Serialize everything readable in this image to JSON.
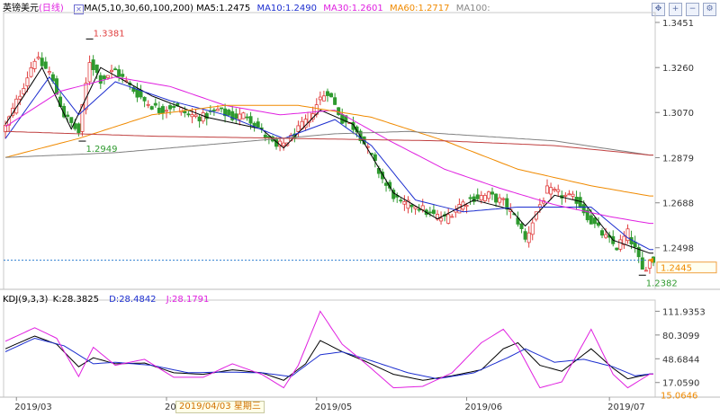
{
  "header": {
    "symbol": "英镑美元",
    "period": "(日线)",
    "ma_spec": "MA(5,10,30,60,100,200)",
    "ma_values": [
      {
        "label": "MA5:1.2475",
        "color": "#000000"
      },
      {
        "label": "MA10:1.2490",
        "color": "#1c2ecf"
      },
      {
        "label": "MA30:1.2601",
        "color": "#e020e0"
      },
      {
        "label": "MA60:1.2717",
        "color": "#f08a00"
      },
      {
        "label": "MA100:",
        "color": "#888888"
      }
    ],
    "icons": [
      "move-icon",
      "plus-icon",
      "minus-icon",
      "settings-icon"
    ]
  },
  "colors": {
    "up": "#e04040",
    "down": "#2f9a2f",
    "ma5": "#000000",
    "ma10": "#1c2ecf",
    "ma30": "#e020e0",
    "ma60": "#f08a00",
    "ma100": "#808080",
    "ma200": "#c04040",
    "k": "#000000",
    "d": "#1c2ecf",
    "j": "#e020e0",
    "price_line": "#2f7fd0"
  },
  "chart_data": [
    {
      "type": "candlestick",
      "title": "英镑美元(日线)",
      "y_ticks": [
        1.3451,
        1.326,
        1.307,
        1.2879,
        1.2688,
        1.2498
      ],
      "ylim": [
        1.2345,
        1.3485
      ],
      "x_labels": [
        {
          "label": "2019/03",
          "index": 3
        },
        {
          "label": "20",
          "index": 44
        },
        {
          "label": "2019/05",
          "index": 85
        },
        {
          "label": "2019/06",
          "index": 126
        },
        {
          "label": "2019/07",
          "index": 165
        }
      ],
      "annotations": [
        {
          "text": "1.3381",
          "index": 23,
          "value": 1.3381,
          "color": "#e04040"
        },
        {
          "text": "1.2949",
          "index": 21,
          "value": 1.2949,
          "color": "#2f9a2f"
        },
        {
          "text": "1.2382",
          "index": 174,
          "value": 1.2382,
          "color": "#2f9a2f"
        }
      ],
      "current_price": {
        "value": 1.2445,
        "label": "1.2445"
      },
      "crosshair_label": "2019/04/03 星期三",
      "ohlc_anchors": [
        [
          0,
          1.301
        ],
        [
          4,
          1.315
        ],
        [
          8,
          1.33
        ],
        [
          12,
          1.324
        ],
        [
          16,
          1.306
        ],
        [
          20,
          1.2985
        ],
        [
          23,
          1.329
        ],
        [
          26,
          1.321
        ],
        [
          30,
          1.325
        ],
        [
          34,
          1.318
        ],
        [
          38,
          1.312
        ],
        [
          42,
          1.308
        ],
        [
          46,
          1.31
        ],
        [
          50,
          1.306
        ],
        [
          54,
          1.305
        ],
        [
          58,
          1.308
        ],
        [
          62,
          1.305
        ],
        [
          66,
          1.306
        ],
        [
          70,
          1.299
        ],
        [
          74,
          1.292
        ],
        [
          78,
          1.296
        ],
        [
          82,
          1.303
        ],
        [
          86,
          1.313
        ],
        [
          88,
          1.316
        ],
        [
          92,
          1.304
        ],
        [
          96,
          1.3
        ],
        [
          100,
          1.288
        ],
        [
          104,
          1.276
        ],
        [
          108,
          1.268
        ],
        [
          112,
          1.268
        ],
        [
          116,
          1.264
        ],
        [
          120,
          1.262
        ],
        [
          124,
          1.268
        ],
        [
          128,
          1.271
        ],
        [
          132,
          1.272
        ],
        [
          136,
          1.269
        ],
        [
          140,
          1.261
        ],
        [
          142,
          1.253
        ],
        [
          145,
          1.265
        ],
        [
          148,
          1.274
        ],
        [
          152,
          1.272
        ],
        [
          156,
          1.27
        ],
        [
          160,
          1.261
        ],
        [
          164,
          1.254
        ],
        [
          167,
          1.25
        ],
        [
          170,
          1.256
        ],
        [
          172,
          1.249
        ],
        [
          174,
          1.24
        ],
        [
          176,
          1.2445
        ]
      ],
      "ma_anchors": {
        "ma5": [
          [
            0,
            1.302
          ],
          [
            10,
            1.326
          ],
          [
            18,
            1.3
          ],
          [
            26,
            1.326
          ],
          [
            40,
            1.314
          ],
          [
            55,
            1.305
          ],
          [
            70,
            1.3
          ],
          [
            76,
            1.292
          ],
          [
            86,
            1.308
          ],
          [
            95,
            1.302
          ],
          [
            106,
            1.273
          ],
          [
            118,
            1.262
          ],
          [
            128,
            1.27
          ],
          [
            138,
            1.266
          ],
          [
            142,
            1.259
          ],
          [
            150,
            1.272
          ],
          [
            158,
            1.269
          ],
          [
            166,
            1.253
          ],
          [
            176,
            1.2475
          ]
        ],
        "ma10": [
          [
            0,
            1.296
          ],
          [
            12,
            1.322
          ],
          [
            20,
            1.306
          ],
          [
            30,
            1.32
          ],
          [
            45,
            1.312
          ],
          [
            60,
            1.306
          ],
          [
            76,
            1.296
          ],
          [
            90,
            1.304
          ],
          [
            100,
            1.293
          ],
          [
            112,
            1.27
          ],
          [
            125,
            1.265
          ],
          [
            140,
            1.267
          ],
          [
            148,
            1.267
          ],
          [
            160,
            1.267
          ],
          [
            170,
            1.254
          ],
          [
            176,
            1.249
          ]
        ],
        "ma30": [
          [
            0,
            1.301
          ],
          [
            15,
            1.316
          ],
          [
            30,
            1.322
          ],
          [
            45,
            1.318
          ],
          [
            60,
            1.31
          ],
          [
            75,
            1.306
          ],
          [
            90,
            1.308
          ],
          [
            105,
            1.295
          ],
          [
            120,
            1.283
          ],
          [
            135,
            1.275
          ],
          [
            150,
            1.268
          ],
          [
            165,
            1.263
          ],
          [
            176,
            1.2601
          ]
        ],
        "ma60": [
          [
            0,
            1.288
          ],
          [
            20,
            1.296
          ],
          [
            40,
            1.306
          ],
          [
            60,
            1.31
          ],
          [
            80,
            1.31
          ],
          [
            100,
            1.305
          ],
          [
            120,
            1.295
          ],
          [
            140,
            1.283
          ],
          [
            160,
            1.276
          ],
          [
            176,
            1.2717
          ]
        ],
        "ma100": [
          [
            0,
            1.288
          ],
          [
            30,
            1.29
          ],
          [
            60,
            1.294
          ],
          [
            90,
            1.298
          ],
          [
            110,
            1.299
          ],
          [
            130,
            1.297
          ],
          [
            150,
            1.295
          ],
          [
            176,
            1.289
          ]
        ],
        "ma200": [
          [
            0,
            1.299
          ],
          [
            40,
            1.297
          ],
          [
            80,
            1.296
          ],
          [
            120,
            1.295
          ],
          [
            150,
            1.293
          ],
          [
            176,
            1.289
          ]
        ]
      }
    },
    {
      "type": "line",
      "title": "KDJ(9,3,3)",
      "series": [
        {
          "name": "K:28.3825"
        },
        {
          "name": "D:28.4842"
        },
        {
          "name": "J:28.1791"
        }
      ],
      "y_ticks": [
        111.9353,
        80.3099,
        48.6844,
        17.059
      ],
      "extra_label": "15.0646",
      "ylim": [
        0,
        122
      ],
      "k_anchors": [
        [
          0,
          62
        ],
        [
          8,
          79
        ],
        [
          14,
          68
        ],
        [
          20,
          38
        ],
        [
          24,
          50
        ],
        [
          30,
          42
        ],
        [
          38,
          43
        ],
        [
          46,
          30
        ],
        [
          54,
          28
        ],
        [
          62,
          34
        ],
        [
          70,
          30
        ],
        [
          76,
          20
        ],
        [
          82,
          42
        ],
        [
          86,
          73
        ],
        [
          92,
          58
        ],
        [
          98,
          46
        ],
        [
          106,
          28
        ],
        [
          114,
          20
        ],
        [
          122,
          26
        ],
        [
          130,
          34
        ],
        [
          136,
          62
        ],
        [
          140,
          70
        ],
        [
          146,
          40
        ],
        [
          152,
          32
        ],
        [
          160,
          62
        ],
        [
          166,
          36
        ],
        [
          170,
          22
        ],
        [
          176,
          28.38
        ]
      ],
      "d_anchors": [
        [
          0,
          58
        ],
        [
          8,
          76
        ],
        [
          16,
          66
        ],
        [
          24,
          42
        ],
        [
          30,
          44
        ],
        [
          40,
          40
        ],
        [
          50,
          30
        ],
        [
          60,
          31
        ],
        [
          70,
          30
        ],
        [
          78,
          25
        ],
        [
          86,
          54
        ],
        [
          92,
          58
        ],
        [
          100,
          46
        ],
        [
          110,
          30
        ],
        [
          118,
          22
        ],
        [
          128,
          30
        ],
        [
          138,
          52
        ],
        [
          142,
          62
        ],
        [
          150,
          44
        ],
        [
          158,
          48
        ],
        [
          166,
          38
        ],
        [
          172,
          26
        ],
        [
          176,
          28.48
        ]
      ],
      "j_anchors": [
        [
          0,
          72
        ],
        [
          8,
          90
        ],
        [
          14,
          76
        ],
        [
          20,
          25
        ],
        [
          24,
          64
        ],
        [
          30,
          40
        ],
        [
          38,
          48
        ],
        [
          46,
          24
        ],
        [
          54,
          24
        ],
        [
          62,
          42
        ],
        [
          70,
          28
        ],
        [
          76,
          10
        ],
        [
          80,
          40
        ],
        [
          86,
          112
        ],
        [
          92,
          68
        ],
        [
          98,
          44
        ],
        [
          106,
          10
        ],
        [
          114,
          12
        ],
        [
          122,
          30
        ],
        [
          130,
          70
        ],
        [
          136,
          88
        ],
        [
          140,
          64
        ],
        [
          146,
          10
        ],
        [
          152,
          18
        ],
        [
          160,
          88
        ],
        [
          166,
          28
        ],
        [
          170,
          10
        ],
        [
          176,
          28.18
        ]
      ]
    }
  ]
}
